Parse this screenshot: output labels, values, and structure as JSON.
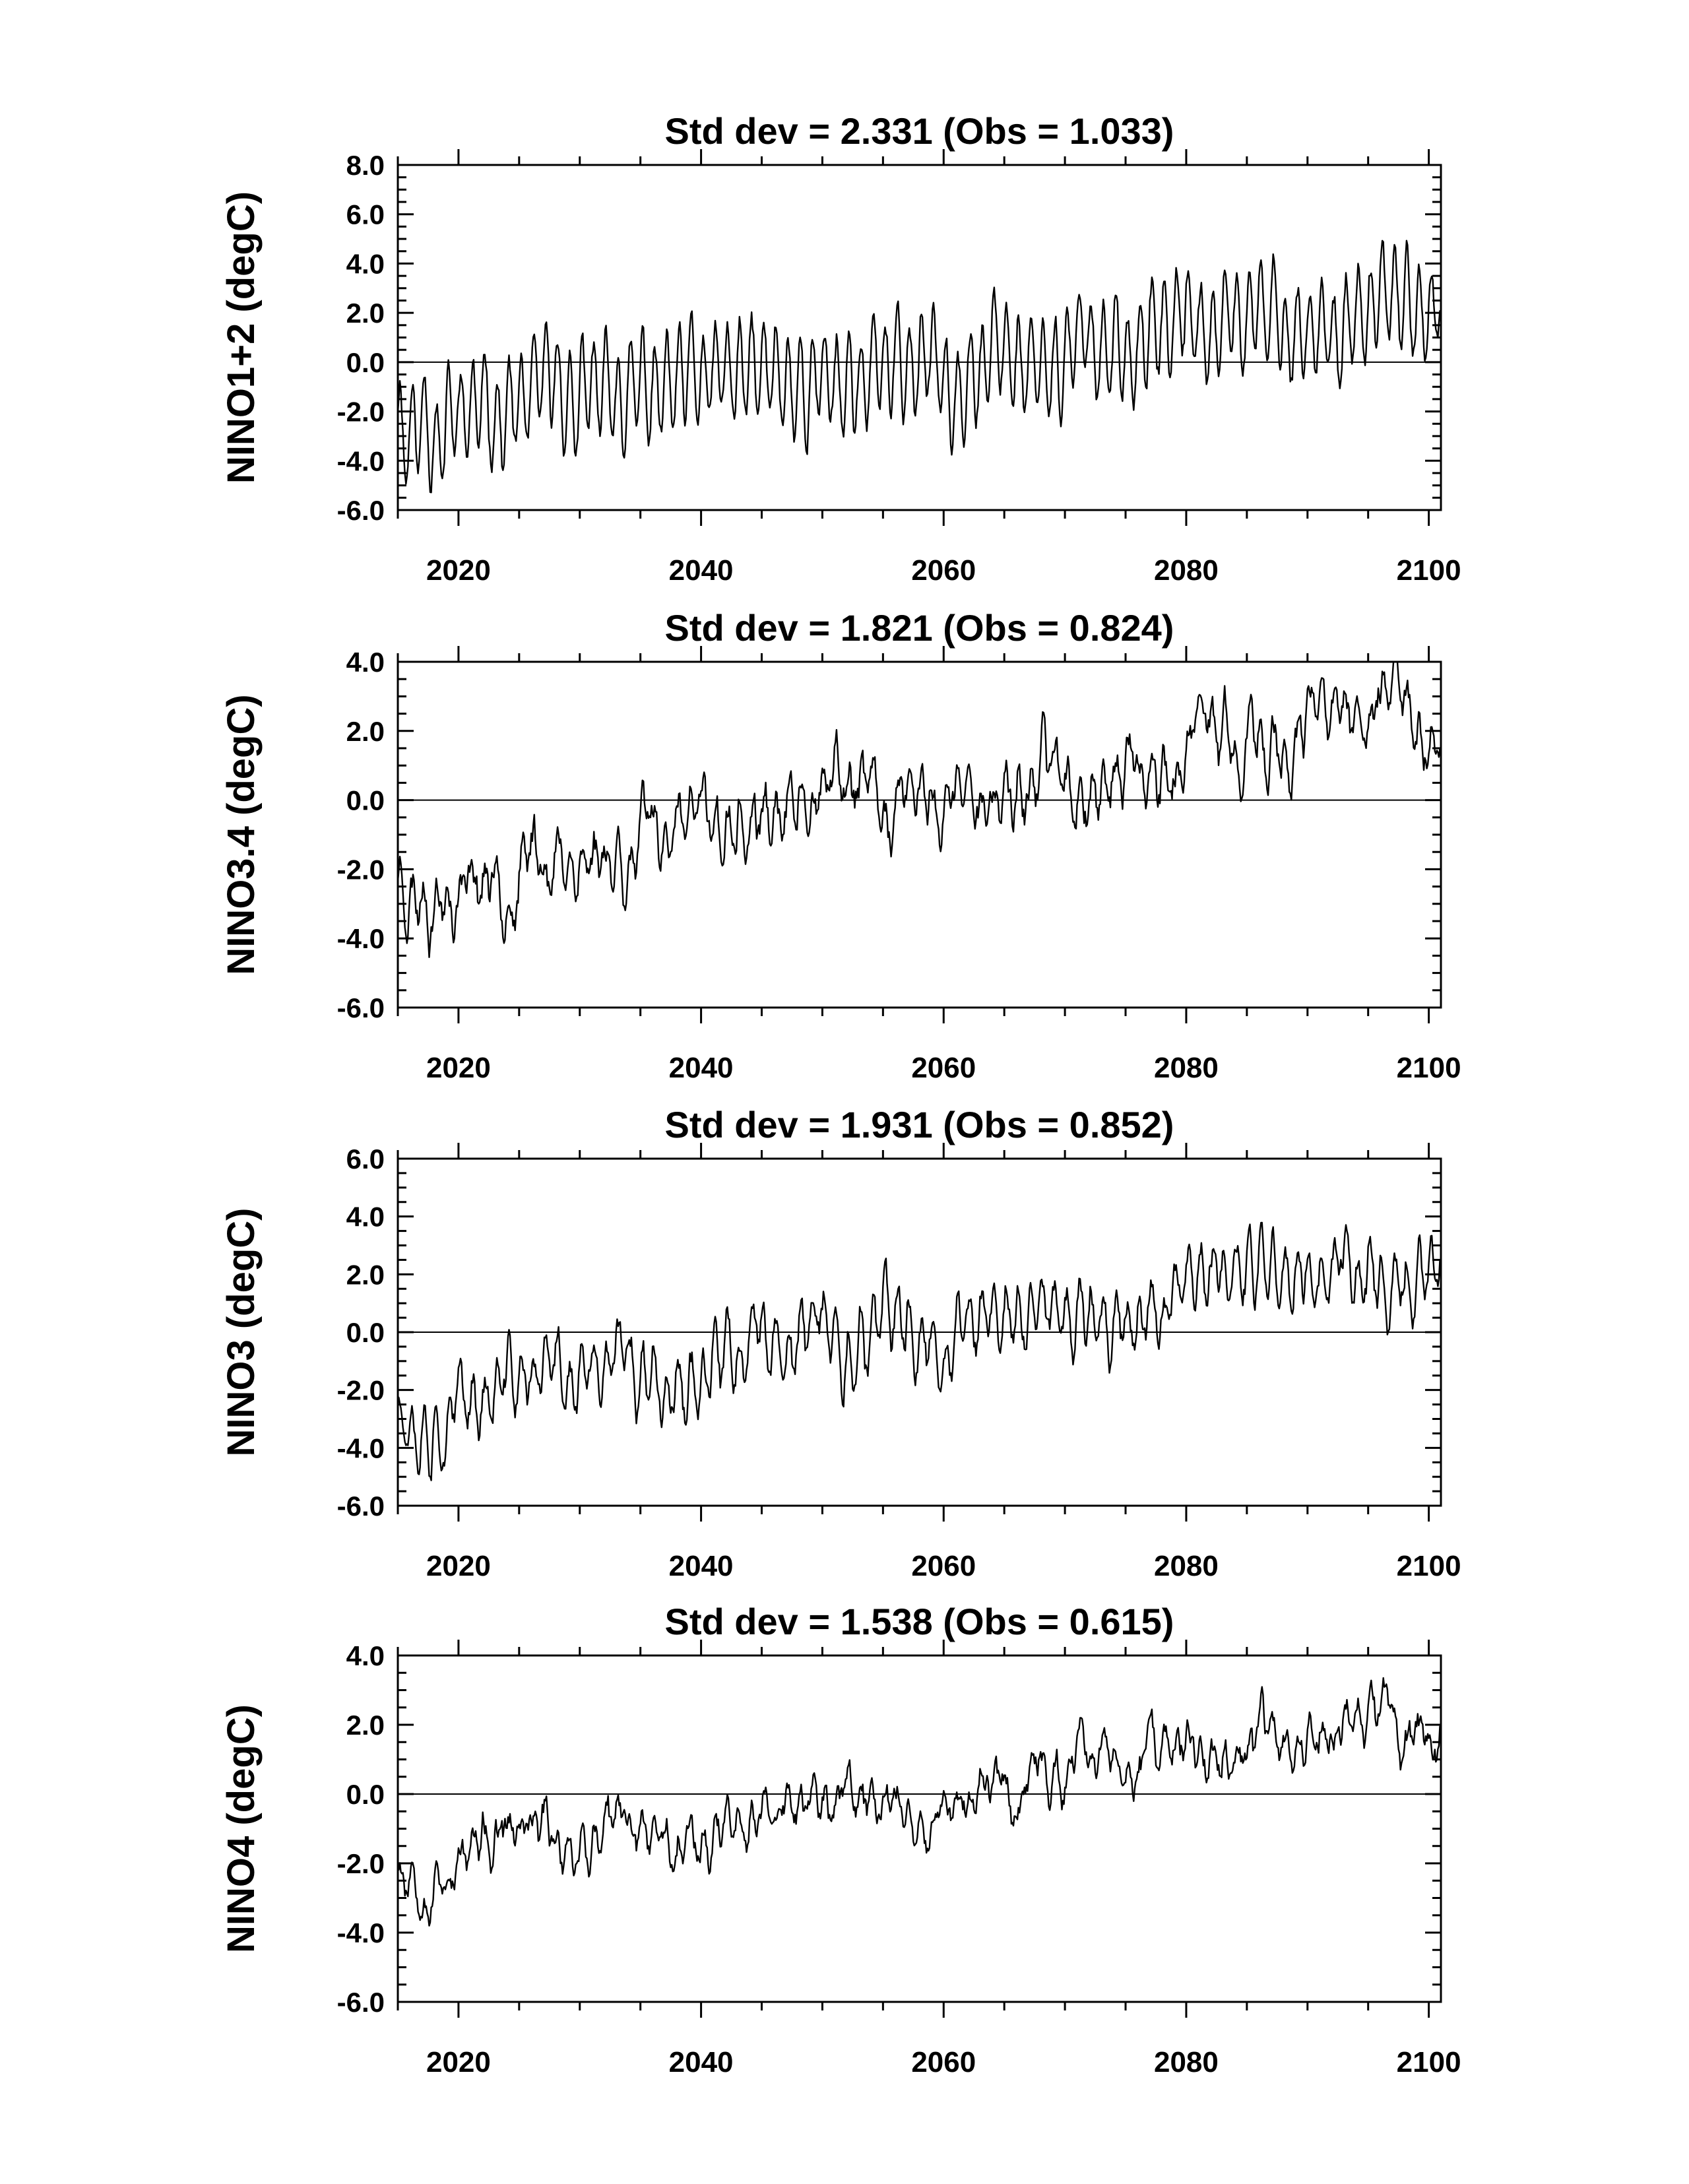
{
  "chart_data": [
    {
      "type": "line",
      "title": "Std dev = 2.331 (Obs = 1.033)",
      "ylabel": "NINO1+2 (degC)",
      "xlabel": "",
      "xlim": [
        2015,
        2101
      ],
      "ylim": [
        -6,
        8
      ],
      "yticks": [
        -6,
        -4,
        -2,
        0,
        2,
        4,
        6,
        8
      ],
      "ytick_labels": [
        "-6.0",
        "-4.0",
        "-2.0",
        "0.0",
        "2.0",
        "4.0",
        "6.0",
        "8.0"
      ],
      "xticks": [
        2020,
        2040,
        2060,
        2080,
        2100
      ],
      "xtick_labels": [
        "2020",
        "2040",
        "2060",
        "2080",
        "2100"
      ],
      "zero_line": true,
      "line_color": "#000000",
      "signal": {
        "start": -2.5,
        "end": 2.2,
        "seasonal_amp": 1.9,
        "interannual_amp": 1.0,
        "seed": 11
      }
    },
    {
      "type": "line",
      "title": "Std dev = 1.821 (Obs = 0.824)",
      "ylabel": "NINO3.4 (degC)",
      "xlabel": "",
      "xlim": [
        2015,
        2101
      ],
      "ylim": [
        -6,
        4
      ],
      "yticks": [
        -6,
        -4,
        -2,
        0,
        2,
        4
      ],
      "ytick_labels": [
        "-6.0",
        "-4.0",
        "-2.0",
        "0.0",
        "2.0",
        "4.0"
      ],
      "xticks": [
        2020,
        2040,
        2060,
        2080,
        2100
      ],
      "xtick_labels": [
        "2020",
        "2040",
        "2060",
        "2080",
        "2100"
      ],
      "zero_line": true,
      "line_color": "#000000",
      "signal": {
        "start": -2.3,
        "end": 2.3,
        "seasonal_amp": 0.55,
        "interannual_amp": 1.05,
        "seed": 23
      }
    },
    {
      "type": "line",
      "title": "Std dev = 1.931 (Obs = 0.852)",
      "ylabel": "NINO3 (degC)",
      "xlabel": "",
      "xlim": [
        2015,
        2101
      ],
      "ylim": [
        -6,
        6
      ],
      "yticks": [
        -6,
        -4,
        -2,
        0,
        2,
        4,
        6
      ],
      "ytick_labels": [
        "-6.0",
        "-4.0",
        "-2.0",
        "0.0",
        "2.0",
        "4.0",
        "6.0"
      ],
      "xticks": [
        2020,
        2040,
        2060,
        2080,
        2100
      ],
      "xtick_labels": [
        "2020",
        "2040",
        "2060",
        "2080",
        "2100"
      ],
      "zero_line": true,
      "line_color": "#000000",
      "signal": {
        "start": -2.4,
        "end": 2.4,
        "seasonal_amp": 0.9,
        "interannual_amp": 1.05,
        "seed": 37
      }
    },
    {
      "type": "line",
      "title": "Std dev = 1.538 (Obs = 0.615)",
      "ylabel": "NINO4 (degC)",
      "xlabel": "",
      "xlim": [
        2015,
        2101
      ],
      "ylim": [
        -6,
        4
      ],
      "yticks": [
        -6,
        -4,
        -2,
        0,
        2,
        4
      ],
      "ytick_labels": [
        "-6.0",
        "-4.0",
        "-2.0",
        "0.0",
        "2.0",
        "4.0"
      ],
      "xticks": [
        2020,
        2040,
        2060,
        2080,
        2100
      ],
      "xtick_labels": [
        "2020",
        "2040",
        "2060",
        "2080",
        "2100"
      ],
      "zero_line": true,
      "line_color": "#000000",
      "signal": {
        "start": -2.0,
        "end": 2.0,
        "seasonal_amp": 0.35,
        "interannual_amp": 0.85,
        "seed": 53
      }
    }
  ]
}
